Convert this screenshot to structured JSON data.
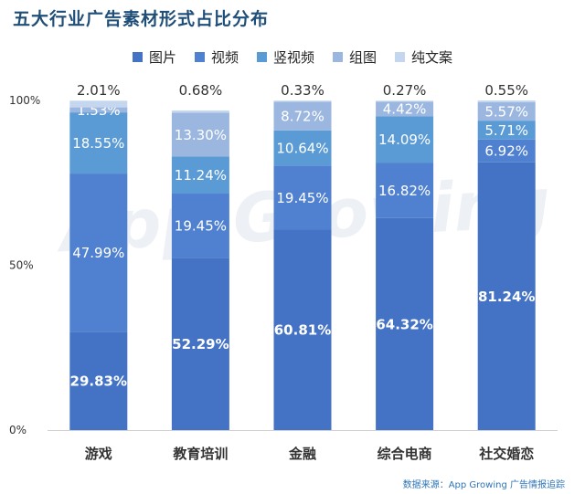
{
  "source": "数据来源：App Growing 广告情报追踪",
  "watermark": "App Growing",
  "chart_data": {
    "type": "bar",
    "stacked": true,
    "title": "五大行业广告素材形式占比分布",
    "categories": [
      "游戏",
      "教育培训",
      "金融",
      "综合电商",
      "社交婚恋"
    ],
    "series": [
      {
        "name": "图片",
        "color": "#4472c4",
        "values": [
          29.83,
          52.29,
          60.81,
          64.32,
          81.24
        ],
        "labels": [
          "29.83%",
          "52.29%",
          "60.81%",
          "64.32%",
          "81.24%"
        ]
      },
      {
        "name": "视频",
        "color": "#4f81d0",
        "values": [
          47.99,
          19.45,
          19.45,
          16.82,
          6.92
        ],
        "labels": [
          "47.99%",
          "19.45%",
          "19.45%",
          "16.82%",
          "6.92%"
        ]
      },
      {
        "name": "竖视频",
        "color": "#5b9bd5",
        "values": [
          18.55,
          11.24,
          10.64,
          14.09,
          5.71
        ],
        "labels": [
          "18.55%",
          "11.24%",
          "10.64%",
          "14.09%",
          "5.71%"
        ]
      },
      {
        "name": "组图",
        "color": "#9bb7e0",
        "values": [
          1.53,
          13.3,
          8.72,
          4.42,
          5.57
        ],
        "labels": [
          "1.53%",
          "13.30%",
          "8.72%",
          "4.42%",
          "5.57%"
        ]
      },
      {
        "name": "纯文案",
        "color": "#c5d7ef",
        "values": [
          2.01,
          0.68,
          0.33,
          0.27,
          0.55
        ],
        "labels": [
          "2.01%",
          "0.68%",
          "0.33%",
          "0.27%",
          "0.55%"
        ]
      }
    ],
    "yticks": [
      "0%",
      "50%",
      "100%"
    ],
    "ylim": [
      0,
      100
    ],
    "legend_position": "top"
  }
}
